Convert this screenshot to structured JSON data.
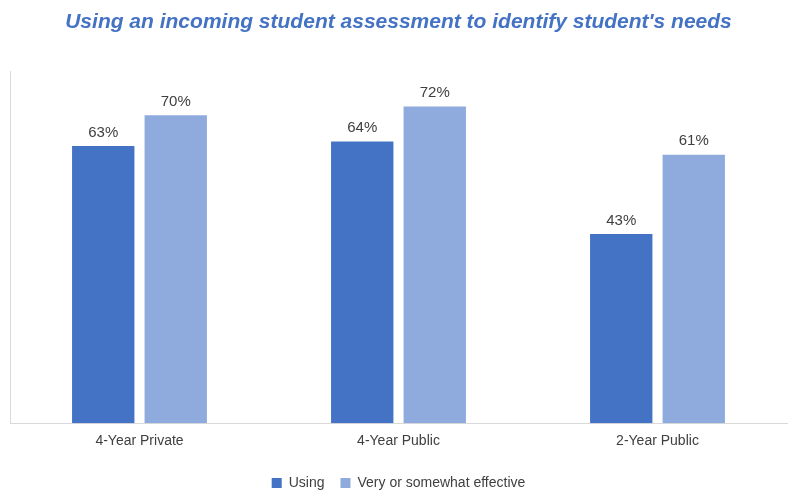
{
  "chart_data": {
    "type": "bar",
    "title": "Using an incoming student assessment to identify student's needs",
    "categories": [
      "4-Year Private",
      "4-Year Public",
      "2-Year Public"
    ],
    "series": [
      {
        "name": "Using",
        "color": "#4472c4",
        "values": [
          63,
          64,
          43
        ],
        "value_labels": [
          "63%",
          "64%",
          "43%"
        ]
      },
      {
        "name": "Very or somewhat effective",
        "color": "#8faadc",
        "values": [
          70,
          72,
          61
        ],
        "value_labels": [
          "70%",
          "72%",
          "61%"
        ]
      }
    ],
    "ylim": [
      0,
      80
    ],
    "grid": false,
    "legend": "bottom",
    "data_labels": true,
    "tick_labels": "x"
  }
}
